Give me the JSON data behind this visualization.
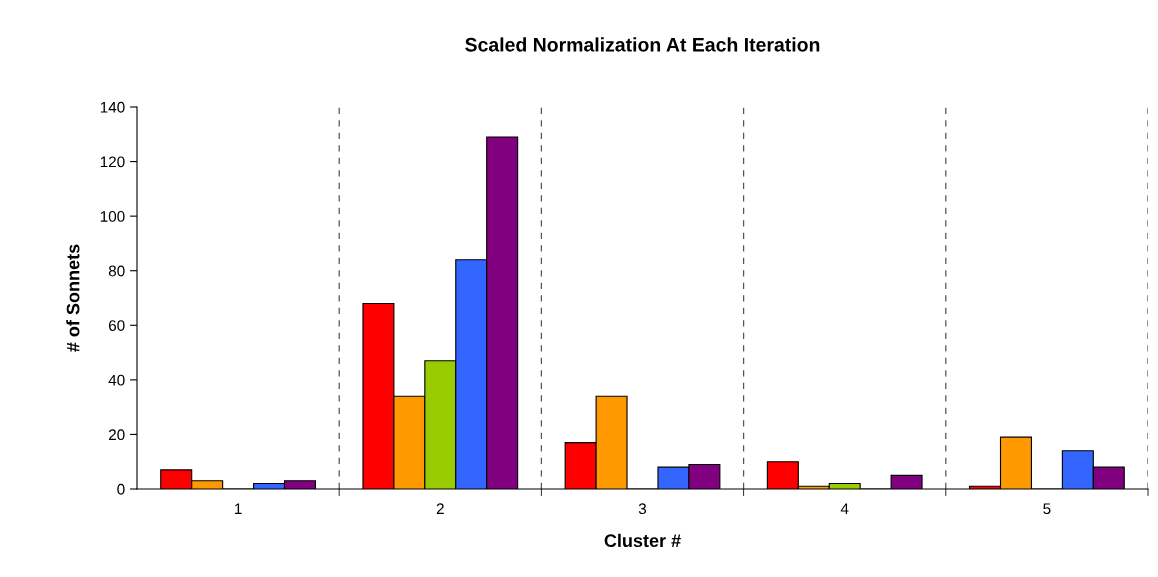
{
  "chart_data": {
    "type": "bar",
    "title": "Scaled Normalization At Each Iteration",
    "xlabel": "Cluster #",
    "ylabel": "# of Sonnets",
    "categories": [
      "1",
      "2",
      "3",
      "4",
      "5"
    ],
    "series": [
      {
        "color": "#ff0000",
        "values": [
          7,
          68,
          17,
          10,
          1
        ]
      },
      {
        "color": "#ff9900",
        "values": [
          3,
          34,
          34,
          1,
          19
        ]
      },
      {
        "color": "#99cc00",
        "values": [
          0,
          47,
          0,
          2,
          0
        ]
      },
      {
        "color": "#3366ff",
        "values": [
          2,
          84,
          8,
          0,
          14
        ]
      },
      {
        "color": "#800080",
        "values": [
          3,
          129,
          9,
          5,
          8
        ]
      }
    ],
    "ylim": [
      0,
      140
    ],
    "yticks": [
      0,
      20,
      40,
      60,
      80,
      100,
      120,
      140
    ],
    "grid": "x"
  }
}
